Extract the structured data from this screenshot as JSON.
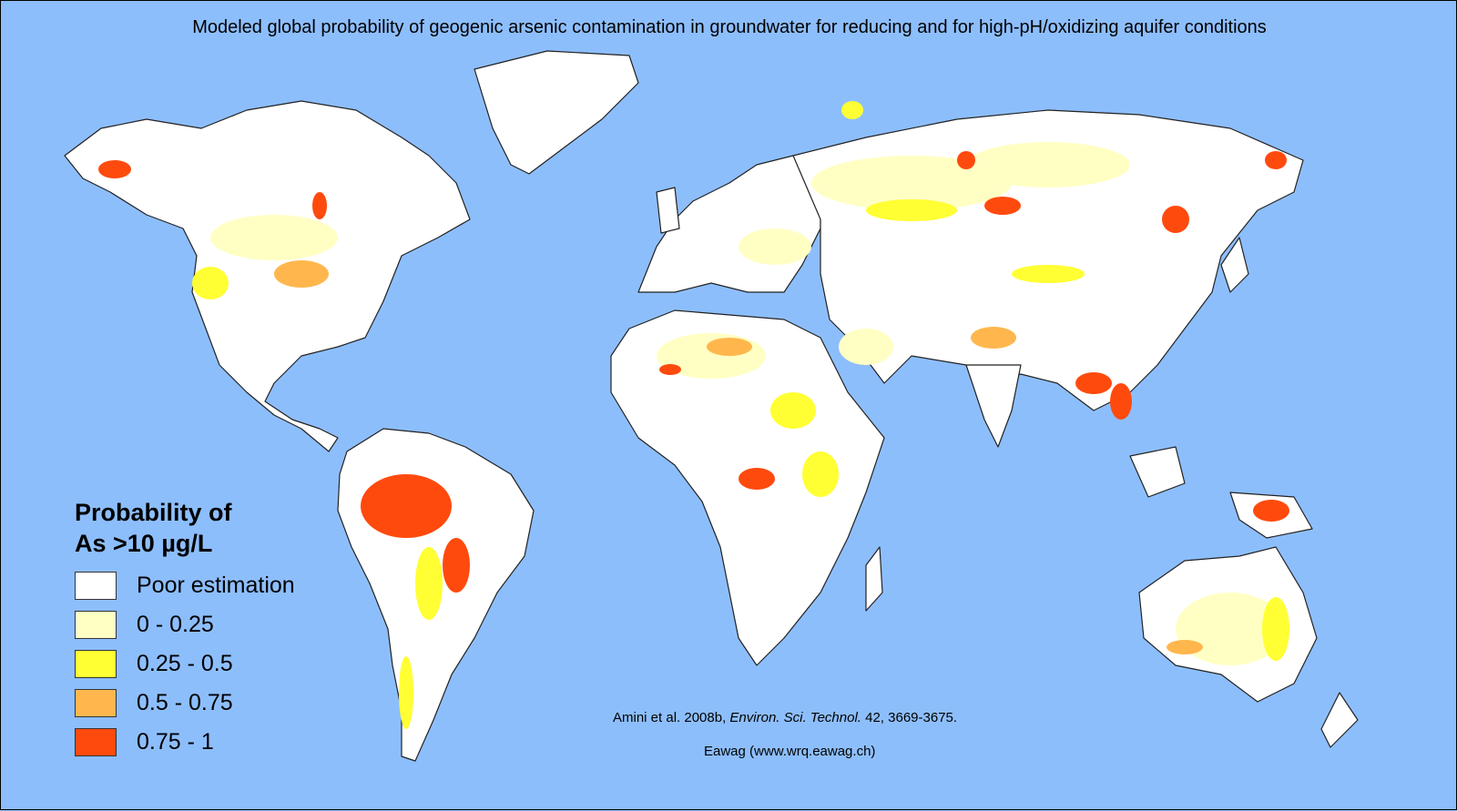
{
  "title": "Modeled global probability of geogenic arsenic contamination in groundwater for reducing and for high-pH/oxidizing aquifer conditions",
  "legend": {
    "title_line1": "Probability of",
    "title_line2": "As >10 µg/L",
    "items": [
      {
        "label": "Poor estimation",
        "color": "#ffffff"
      },
      {
        "label": "0 - 0.25",
        "color": "#ffffc4"
      },
      {
        "label": "0.25 - 0.5",
        "color": "#ffff33"
      },
      {
        "label": "0.5 - 0.75",
        "color": "#ffb74d"
      },
      {
        "label": "0.75 - 1",
        "color": "#ff4a0e"
      }
    ]
  },
  "citation": {
    "authors": "Amini et al. 2008b, ",
    "journal": "Environ. Sci. Technol.",
    "details": " 42, 3669-3675."
  },
  "credit": "Eawag (www.wrq.eawag.ch)",
  "colors": {
    "ocean": "#8dbefc",
    "land_poor": "#ffffff",
    "outline": "#222222"
  }
}
